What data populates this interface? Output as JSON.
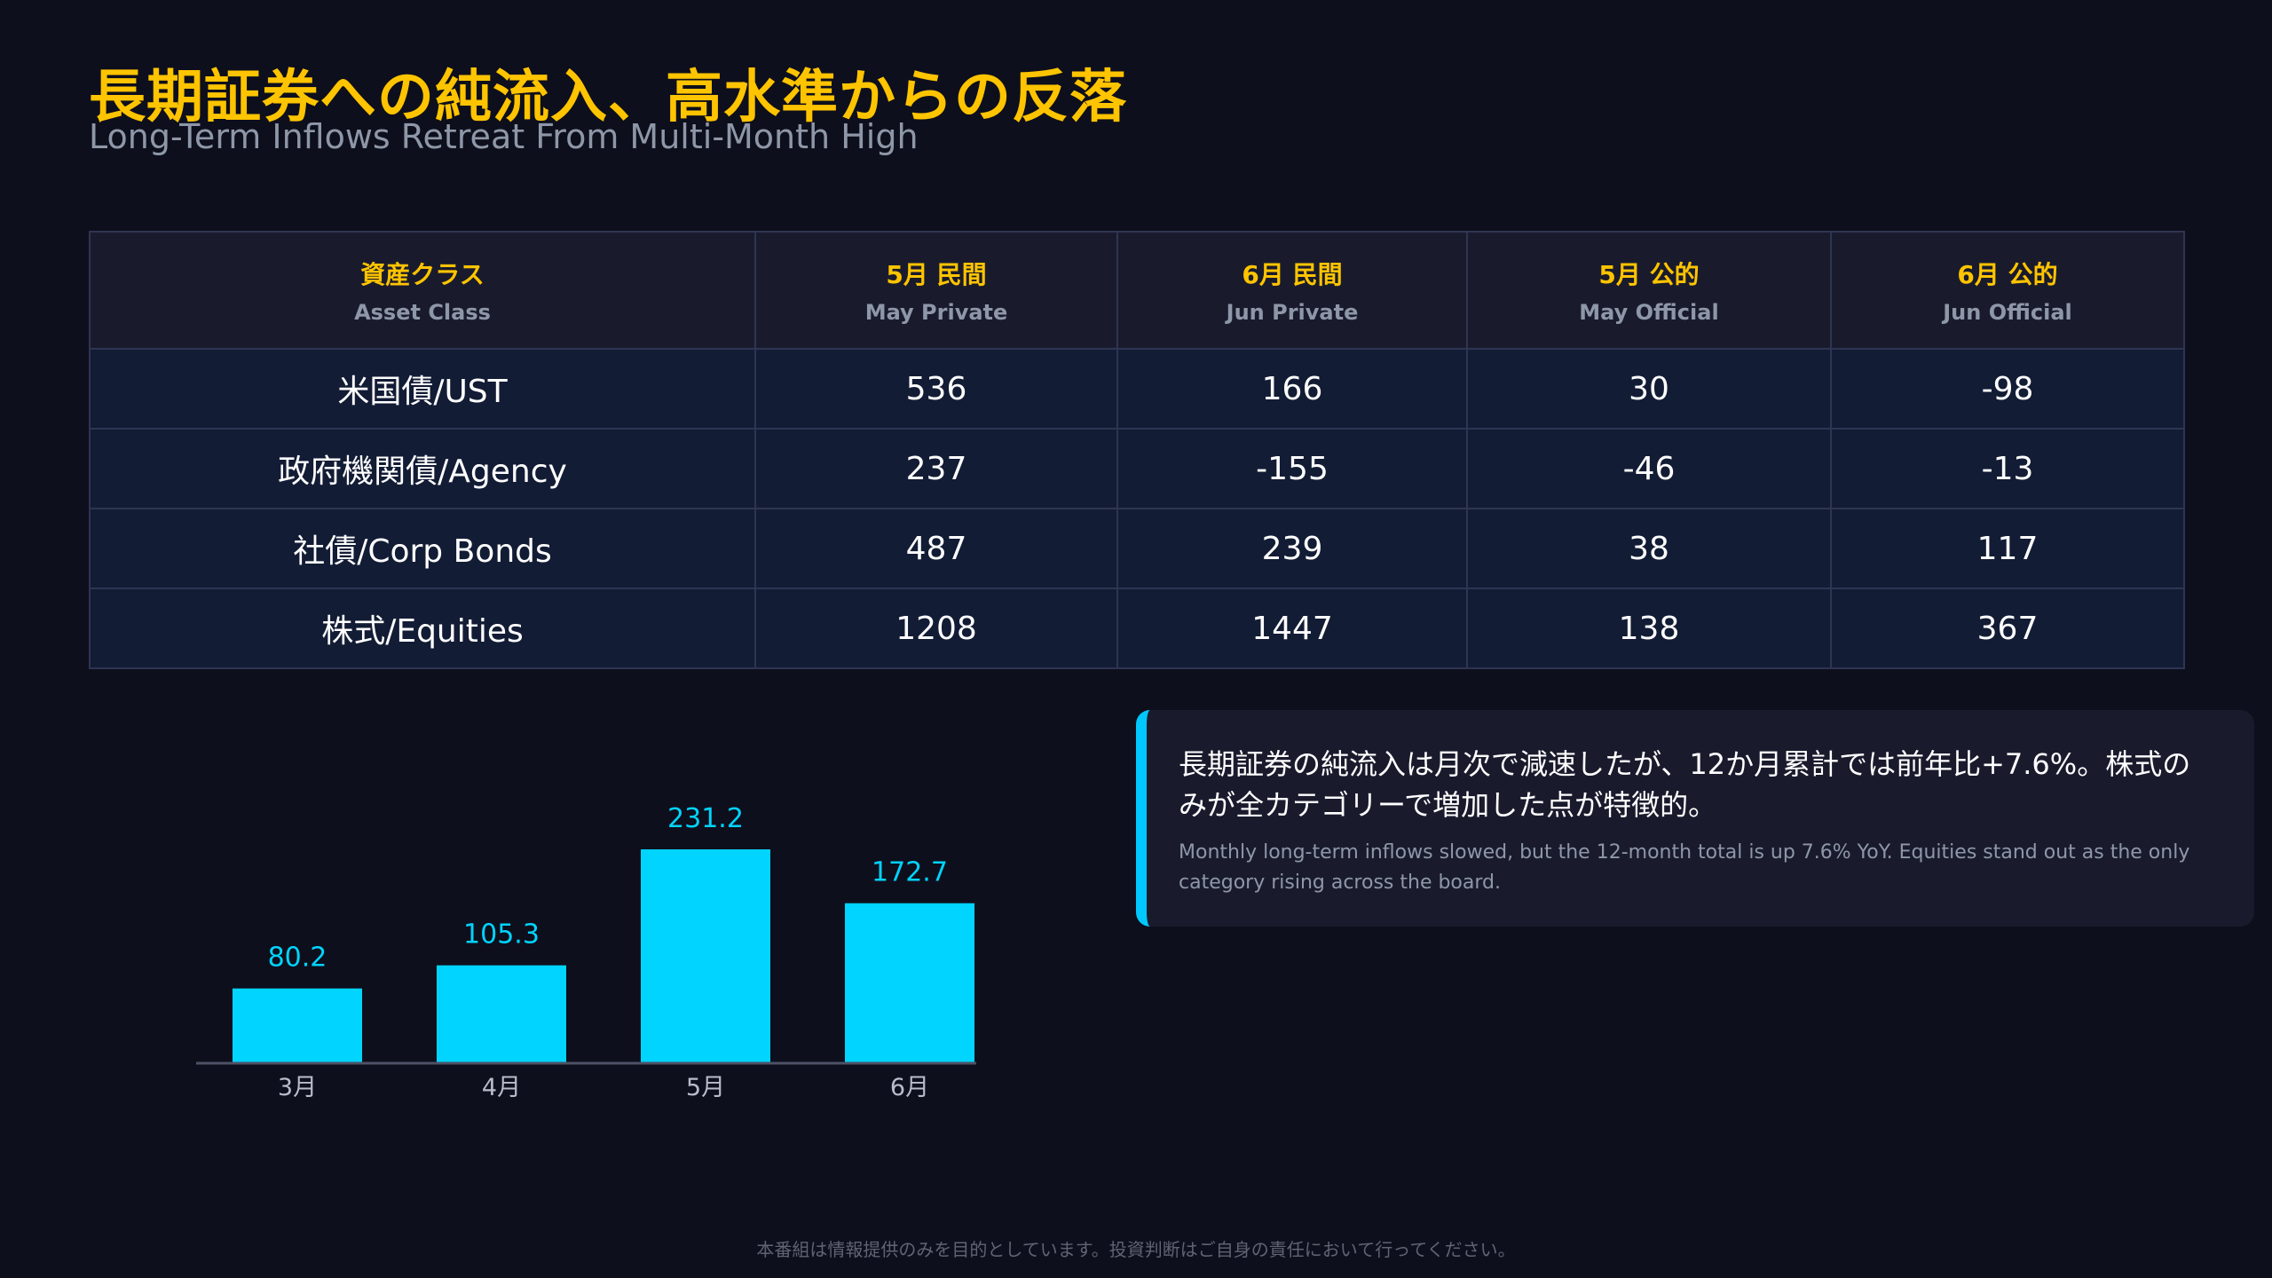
{
  "header": {
    "title": "長期証券への純流入、高水準からの反落",
    "subtitle": "Long-Term Inflows Retreat From Multi-Month High"
  },
  "table": {
    "headers": [
      {
        "jp": "資産クラス",
        "en": "Asset Class"
      },
      {
        "jp": "5月 民間",
        "en": "May Private"
      },
      {
        "jp": "6月 民間",
        "en": "Jun Private"
      },
      {
        "jp": "5月 公的",
        "en": "May Official"
      },
      {
        "jp": "6月 公的",
        "en": "Jun Official"
      }
    ],
    "rows": [
      {
        "label": "米国債/UST",
        "cells": [
          {
            "value": "536",
            "tone": "neutral"
          },
          {
            "value": "166",
            "tone": "negative"
          },
          {
            "value": "30",
            "tone": "neutral"
          },
          {
            "value": "-98",
            "tone": "negative"
          }
        ]
      },
      {
        "label": "政府機関債/Agency",
        "cells": [
          {
            "value": "237",
            "tone": "neutral"
          },
          {
            "value": "-155",
            "tone": "negative"
          },
          {
            "value": "-46",
            "tone": "neutral"
          },
          {
            "value": "-13",
            "tone": "neutral"
          }
        ]
      },
      {
        "label": "社債/Corp Bonds",
        "cells": [
          {
            "value": "487",
            "tone": "neutral"
          },
          {
            "value": "239",
            "tone": "negative"
          },
          {
            "value": "38",
            "tone": "neutral"
          },
          {
            "value": "117",
            "tone": "positive"
          }
        ]
      },
      {
        "label": "株式/Equities",
        "cells": [
          {
            "value": "1208",
            "tone": "neutral"
          },
          {
            "value": "1447",
            "tone": "positive"
          },
          {
            "value": "138",
            "tone": "neutral"
          },
          {
            "value": "367",
            "tone": "positive"
          }
        ]
      }
    ]
  },
  "chart_data": {
    "type": "bar",
    "categories": [
      "3月",
      "4月",
      "5月",
      "6月"
    ],
    "values": [
      80.2,
      105.3,
      231.2,
      172.7
    ],
    "labels": [
      "80.2",
      "105.3",
      "231.2",
      "172.7"
    ],
    "title": "",
    "xlabel": "",
    "ylabel": "",
    "ylim": [
      0,
      231.2
    ],
    "grid": false,
    "bar_color": "#00d4ff"
  },
  "callout": {
    "jp": "長期証券の純流入は月次で減速したが、12か月累計では前年比+7.6%。株式のみが全カテゴリーで増加した点が特徴的。",
    "en": "Monthly long-term inflows slowed, but the 12-month total is up 7.6% YoY. Equities stand out as the only category rising across the board."
  },
  "footer": {
    "disclaimer": "本番組は情報提供のみを目的としています。投資判断はご自身の責任において行ってください。"
  },
  "colors": {
    "accent": "#ffc400",
    "negative": "#ef4a3c",
    "positive": "#47b24f",
    "bar": "#00d4ff"
  }
}
